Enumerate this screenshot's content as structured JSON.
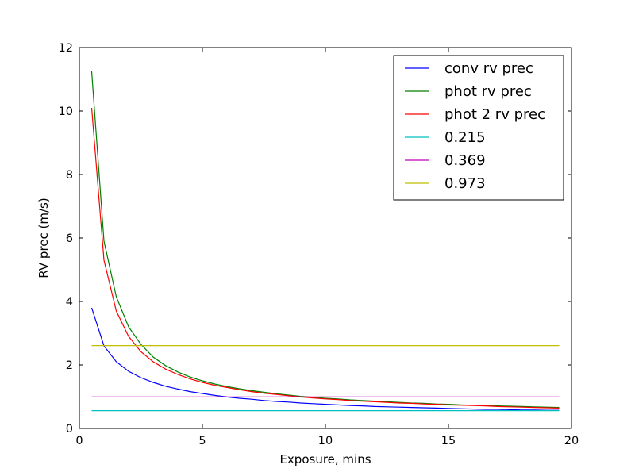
{
  "chart_data": {
    "type": "line",
    "title": "",
    "xlabel": "Exposure, mins",
    "ylabel": "RV prec (m/s)",
    "xlim": [
      0,
      20
    ],
    "ylim": [
      0,
      12
    ],
    "x_ticks": [
      "0",
      "5",
      "10",
      "15",
      "20"
    ],
    "y_ticks": [
      "0",
      "2",
      "4",
      "6",
      "8",
      "10",
      "12"
    ],
    "grid": false,
    "legend_position": "top-right",
    "x": [
      0.5,
      1.0,
      1.5,
      2.0,
      2.5,
      3.0,
      3.5,
      4.0,
      4.5,
      5.0,
      5.5,
      6.0,
      6.5,
      7.0,
      7.5,
      8.0,
      8.5,
      9.0,
      9.5,
      10.0,
      10.5,
      11.0,
      11.5,
      12.0,
      12.5,
      13.0,
      13.5,
      14.0,
      14.5,
      15.0,
      15.5,
      16.0,
      16.5,
      17.0,
      17.5,
      18.0,
      18.5,
      19.0,
      19.5
    ],
    "series": [
      {
        "name": "conv rv prec",
        "color": "#0000ff",
        "values": [
          3.8,
          2.6,
          2.1,
          1.8,
          1.6,
          1.45,
          1.33,
          1.24,
          1.16,
          1.1,
          1.04,
          0.99,
          0.95,
          0.92,
          0.88,
          0.85,
          0.83,
          0.8,
          0.78,
          0.76,
          0.74,
          0.72,
          0.71,
          0.69,
          0.68,
          0.67,
          0.66,
          0.65,
          0.64,
          0.63,
          0.62,
          0.61,
          0.6,
          0.6,
          0.59,
          0.58,
          0.58,
          0.57,
          0.57
        ]
      },
      {
        "name": "phot rv prec",
        "color": "#008000",
        "values": [
          11.25,
          5.9,
          4.15,
          3.2,
          2.65,
          2.25,
          1.98,
          1.78,
          1.62,
          1.5,
          1.4,
          1.32,
          1.25,
          1.19,
          1.14,
          1.09,
          1.05,
          1.01,
          0.98,
          0.95,
          0.93,
          0.9,
          0.88,
          0.86,
          0.84,
          0.82,
          0.8,
          0.79,
          0.77,
          0.76,
          0.74,
          0.73,
          0.72,
          0.71,
          0.7,
          0.69,
          0.68,
          0.67,
          0.66
        ]
      },
      {
        "name": "phot 2 rv prec",
        "color": "#ff0000",
        "values": [
          10.1,
          5.3,
          3.7,
          2.9,
          2.42,
          2.1,
          1.87,
          1.7,
          1.56,
          1.45,
          1.36,
          1.29,
          1.22,
          1.16,
          1.11,
          1.07,
          1.03,
          0.99,
          0.96,
          0.93,
          0.91,
          0.88,
          0.86,
          0.84,
          0.82,
          0.8,
          0.79,
          0.77,
          0.76,
          0.74,
          0.73,
          0.72,
          0.71,
          0.69,
          0.68,
          0.67,
          0.66,
          0.65,
          0.64
        ]
      },
      {
        "name": "0.215",
        "color": "#00bfbf",
        "values": [
          0.56,
          0.56,
          0.56,
          0.56,
          0.56,
          0.56,
          0.56,
          0.56,
          0.56,
          0.56,
          0.56,
          0.56,
          0.56,
          0.56,
          0.56,
          0.56,
          0.56,
          0.56,
          0.56,
          0.56,
          0.56,
          0.56,
          0.56,
          0.56,
          0.56,
          0.56,
          0.56,
          0.56,
          0.56,
          0.56,
          0.56,
          0.56,
          0.56,
          0.56,
          0.56,
          0.56,
          0.56,
          0.56,
          0.56
        ]
      },
      {
        "name": "0.369",
        "color": "#bf00bf",
        "values": [
          0.99,
          0.99,
          0.99,
          0.99,
          0.99,
          0.99,
          0.99,
          0.99,
          0.99,
          0.99,
          0.99,
          0.99,
          0.99,
          0.99,
          0.99,
          0.99,
          0.99,
          0.99,
          0.99,
          0.99,
          0.99,
          0.99,
          0.99,
          0.99,
          0.99,
          0.99,
          0.99,
          0.99,
          0.99,
          0.99,
          0.99,
          0.99,
          0.99,
          0.99,
          0.99,
          0.99,
          0.99,
          0.99,
          0.99
        ]
      },
      {
        "name": "0.973",
        "color": "#bfbf00",
        "values": [
          2.61,
          2.61,
          2.61,
          2.61,
          2.61,
          2.61,
          2.61,
          2.61,
          2.61,
          2.61,
          2.61,
          2.61,
          2.61,
          2.61,
          2.61,
          2.61,
          2.61,
          2.61,
          2.61,
          2.61,
          2.61,
          2.61,
          2.61,
          2.61,
          2.61,
          2.61,
          2.61,
          2.61,
          2.61,
          2.61,
          2.61,
          2.61,
          2.61,
          2.61,
          2.61,
          2.61,
          2.61,
          2.61,
          2.61
        ]
      }
    ]
  }
}
